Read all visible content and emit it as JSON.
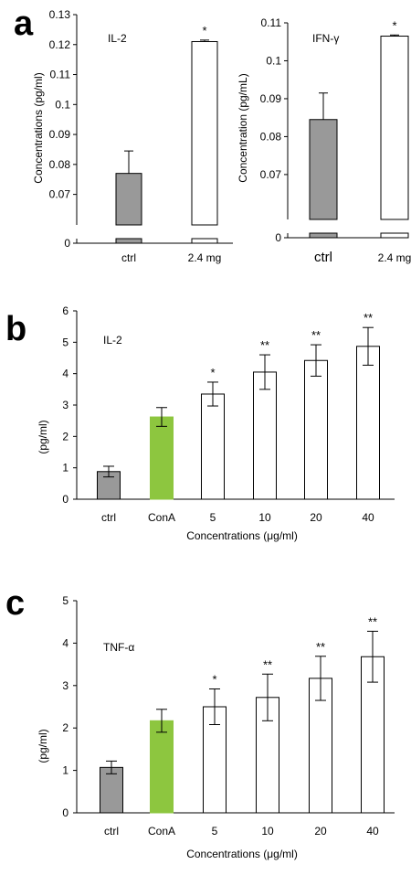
{
  "chart_data": [
    {
      "panel": "a",
      "type": "bar",
      "title": "IL-2",
      "ylabel": "Concentrations (pg/ml)",
      "xlabel": "",
      "ylim": [
        0,
        0.13
      ],
      "axis_break": true,
      "yticks": [
        "0",
        "0.07",
        "0.08",
        "0.09",
        "0.1",
        "0.11",
        "0.12",
        "0.13"
      ],
      "categories": [
        "ctrl",
        "2.4 mg"
      ],
      "values": [
        0.077,
        0.121
      ],
      "errors": [
        0.0075,
        0.0005
      ],
      "colors": [
        "#999999",
        "#ffffff"
      ],
      "significance": [
        "",
        "*"
      ]
    },
    {
      "panel": "",
      "type": "bar",
      "title": "IFN-γ",
      "ylabel": "Concentration (pg/mL)",
      "xlabel": "",
      "ylim": [
        0,
        0.11
      ],
      "axis_break": true,
      "yticks": [
        "0",
        "0.07",
        "0.08",
        "0.09",
        "0.1",
        "0.11"
      ],
      "categories": [
        "ctrl",
        "2.4 mg"
      ],
      "values": [
        0.0845,
        0.1065
      ],
      "errors": [
        0.007,
        0.0003
      ],
      "colors": [
        "#999999",
        "#ffffff"
      ],
      "significance": [
        "",
        "*"
      ]
    },
    {
      "panel": "b",
      "type": "bar",
      "title": "IL-2",
      "ylabel": "(pg/ml)",
      "xlabel": "Concentrations (μg/ml)",
      "ylim": [
        0,
        6
      ],
      "yticks": [
        "0",
        "1",
        "2",
        "3",
        "4",
        "5",
        "6"
      ],
      "categories": [
        "ctrl",
        "ConA",
        "5",
        "10",
        "20",
        "40"
      ],
      "values": [
        0.88,
        2.62,
        3.35,
        4.05,
        4.42,
        4.87
      ],
      "errors": [
        0.17,
        0.3,
        0.38,
        0.55,
        0.5,
        0.6
      ],
      "colors": [
        "#999999",
        "#8dc63f",
        "#ffffff",
        "#ffffff",
        "#ffffff",
        "#ffffff"
      ],
      "significance": [
        "",
        "",
        "*",
        "**",
        "**",
        "**"
      ]
    },
    {
      "panel": "c",
      "type": "bar",
      "title": "TNF-α",
      "ylabel": "(pg/ml)",
      "xlabel": "Concentrations (μg/ml)",
      "ylim": [
        0,
        5
      ],
      "yticks": [
        "0",
        "1",
        "2",
        "3",
        "4",
        "5"
      ],
      "categories": [
        "ctrl",
        "ConA",
        "5",
        "10",
        "20",
        "40"
      ],
      "values": [
        1.07,
        2.17,
        2.5,
        2.72,
        3.17,
        3.68
      ],
      "errors": [
        0.15,
        0.27,
        0.42,
        0.55,
        0.52,
        0.6
      ],
      "colors": [
        "#999999",
        "#8dc63f",
        "#ffffff",
        "#ffffff",
        "#ffffff",
        "#ffffff"
      ],
      "significance": [
        "",
        "",
        "*",
        "**",
        "**",
        "**"
      ]
    }
  ]
}
